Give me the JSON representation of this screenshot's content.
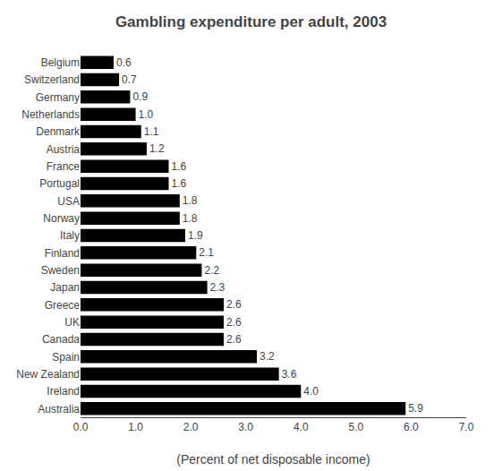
{
  "chart_data": {
    "type": "bar",
    "orientation": "horizontal",
    "title": "Gambling expenditure per adult, 2003",
    "xlabel": "(Percent of net disposable income)",
    "categories": [
      "Belgium",
      "Switzerland",
      "Germany",
      "Netherlands",
      "Denmark",
      "Austria",
      "France",
      "Portugal",
      "USA",
      "Norway",
      "Italy",
      "Finland",
      "Sweden",
      "Japan",
      "Greece",
      "UK",
      "Canada",
      "Spain",
      "New Zealand",
      "Ireland",
      "Australia"
    ],
    "values": [
      0.6,
      0.7,
      0.9,
      1.0,
      1.1,
      1.2,
      1.6,
      1.6,
      1.8,
      1.8,
      1.9,
      2.1,
      2.2,
      2.3,
      2.6,
      2.6,
      2.6,
      3.2,
      3.6,
      4.0,
      5.9
    ],
    "value_labels": [
      "0.6",
      "0.7",
      "0.9",
      "1.0",
      "1.1",
      "1.2",
      "1.6",
      "1.6",
      "1.8",
      "1.8",
      "1.9",
      "2.1",
      "2.2",
      "2.3",
      "2.6",
      "2.6",
      "2.6",
      "3.2",
      "3.6",
      "4.0",
      "5.9"
    ],
    "data_labels": true,
    "color": "#000000",
    "xlim": [
      0,
      7.0
    ],
    "xticks": [
      {
        "value": 0.0,
        "label": "0.0"
      },
      {
        "value": 1.0,
        "label": "1.0"
      },
      {
        "value": 2.0,
        "label": "2.0"
      },
      {
        "value": 3.0,
        "label": "3.0"
      },
      {
        "value": 4.0,
        "label": "4.0"
      },
      {
        "value": 5.0,
        "label": "5.0"
      },
      {
        "value": 6.0,
        "label": "6.0"
      },
      {
        "value": 7.0,
        "label": "7.0"
      }
    ],
    "grid": false
  }
}
